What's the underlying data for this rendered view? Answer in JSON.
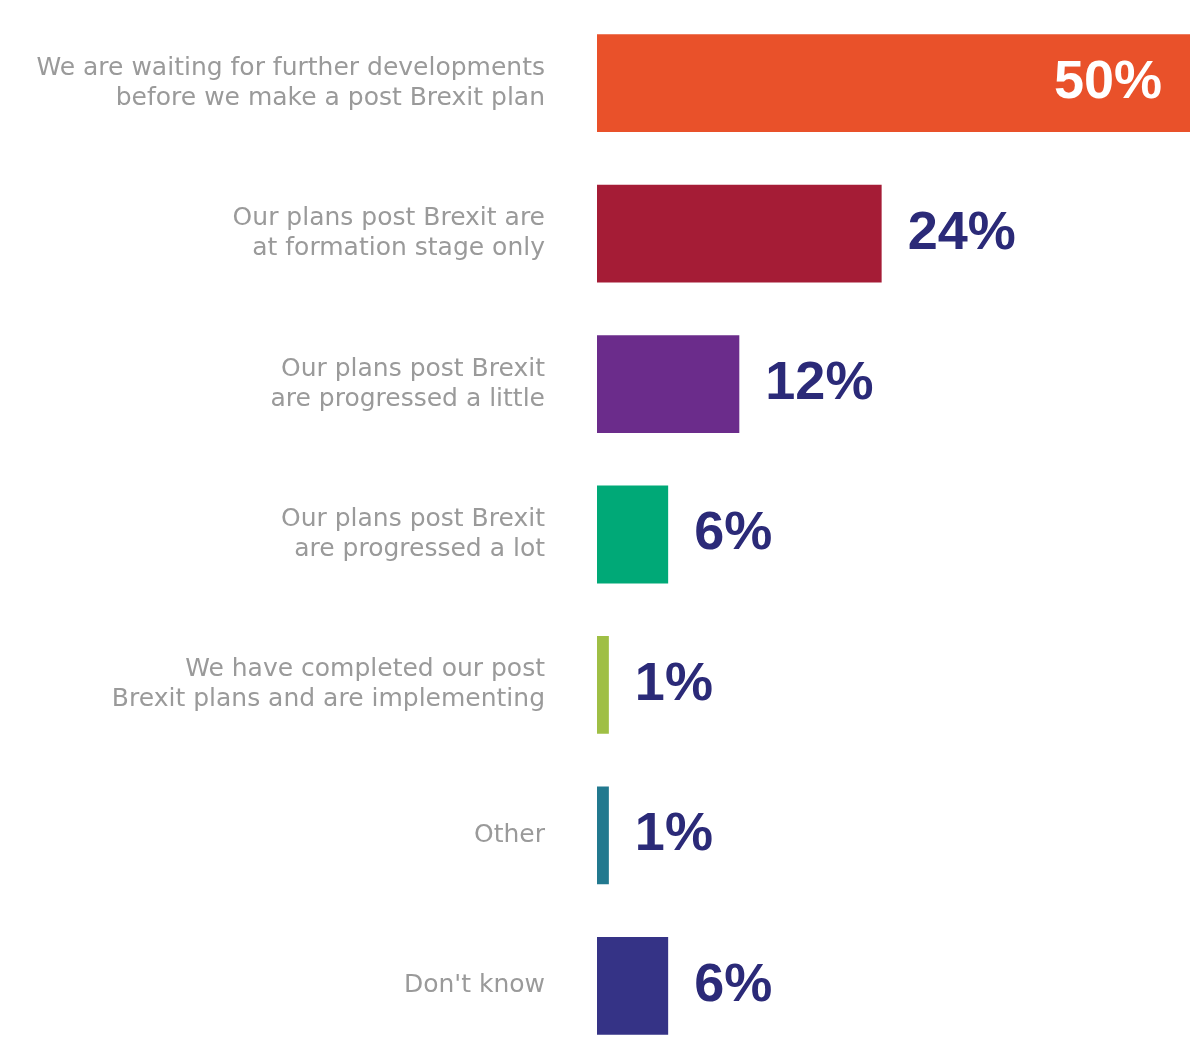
{
  "chart_data": {
    "type": "bar",
    "orientation": "horizontal",
    "categories": [
      "We are waiting for further developments before we make a post Brexit plan",
      "Our plans post Brexit are at formation stage only",
      "Our plans post Brexit are progressed a little",
      "Our plans post Brexit are progressed a lot",
      "We have completed our post Brexit plans and are implementing",
      "Other",
      "Don't know"
    ],
    "values": [
      50,
      24,
      12,
      6,
      1,
      1,
      6
    ],
    "colors": [
      "#e9512a",
      "#a51c36",
      "#6b2c8b",
      "#00a977",
      "#9fbf45",
      "#22798f",
      "#353386"
    ],
    "value_labels": [
      "50%",
      "24%",
      "12%",
      "6%",
      "1%",
      "1%",
      "6%"
    ],
    "legend": false,
    "tick_labels": "y"
  }
}
